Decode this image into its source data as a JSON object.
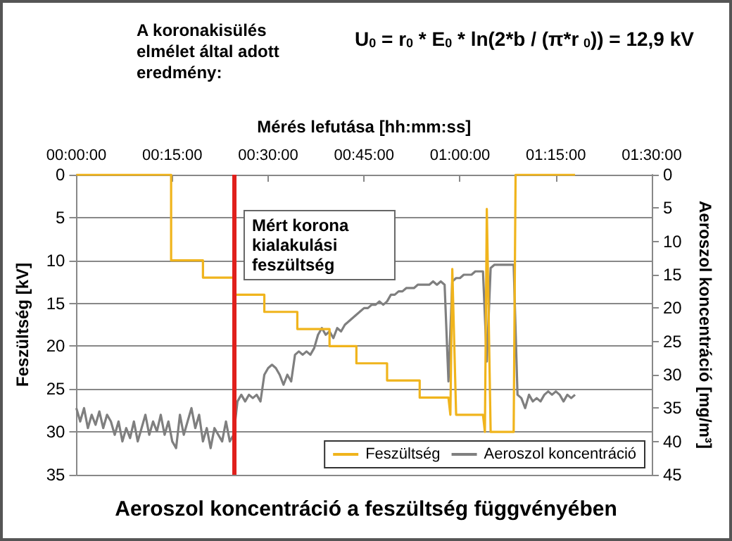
{
  "chart_data": {
    "type": "line",
    "title": "Aeroszol koncentráció a feszültség függvényében",
    "xlabel": "Mérés lefutása [hh:mm:ss]",
    "ylabel": "Feszültség [kV]",
    "y2label": "Aeroszol koncentráció [mg/m³]",
    "annotations": [
      "A koronakisülés elmélet által adott eredmény:",
      "U$_{0}$ = r$_{0}$ * E$_{0}$ * ln(2*b / (π*r$_{0}$)) = 12,9 kV"
    ],
    "xlim": [
      0,
      1.5
    ],
    "xticks": [
      {
        "value": 0,
        "label": "00:00:00"
      },
      {
        "value": 0.25,
        "label": "00:15:00"
      },
      {
        "value": 0.5,
        "label": "00:30:00"
      },
      {
        "value": 0.75,
        "label": "00:45:00"
      },
      {
        "value": 1,
        "label": "01:00:00"
      },
      {
        "value": 1.25,
        "label": "01:15:00"
      },
      {
        "value": 1.5,
        "label": "01:30:00"
      }
    ],
    "ylim": [
      35,
      0
    ],
    "yticks": [
      0,
      5,
      10,
      15,
      20,
      25,
      30,
      35
    ],
    "y2lim": [
      45,
      0
    ],
    "y2ticks": [
      0,
      5,
      10,
      15,
      20,
      25,
      30,
      35,
      40,
      45
    ],
    "grid": "y",
    "legend": "bottom right",
    "marker": "none",
    "line_style": "solid",
    "ref_lines": [
      {
        "axis": "x",
        "value": 0.414,
        "label": "Mért korona kialakulási feszültség",
        "color": "#e0201c"
      }
    ],
    "series": [
      {
        "name": "Feszültség",
        "color": "#f0b41c",
        "x": [
          0,
          0.247,
          0.247,
          0.33,
          0.33,
          0.414,
          0.414,
          0.49,
          0.49,
          0.576,
          0.576,
          0.66,
          0.66,
          0.73,
          0.73,
          0.81,
          0.81,
          0.895,
          0.895,
          0.97,
          0.975,
          0.98,
          0.99,
          1.06,
          1.065,
          1.07,
          1.08,
          1.14,
          1.145,
          1.3
        ],
        "values": [
          0,
          0,
          10,
          10,
          12,
          12,
          14,
          14,
          16,
          16,
          18,
          18,
          20,
          20,
          22,
          22,
          24,
          24,
          26,
          26,
          28,
          11,
          28,
          28,
          30,
          4,
          30,
          30,
          0,
          0
        ]
      },
      {
        "name": "Aeroszol koncentráció",
        "color": "#7f7f7f",
        "axis": "y2",
        "x": [
          0,
          0.01,
          0.02,
          0.03,
          0.04,
          0.05,
          0.06,
          0.07,
          0.08,
          0.09,
          0.1,
          0.11,
          0.12,
          0.13,
          0.14,
          0.15,
          0.16,
          0.17,
          0.18,
          0.19,
          0.2,
          0.21,
          0.22,
          0.23,
          0.24,
          0.25,
          0.26,
          0.27,
          0.28,
          0.29,
          0.3,
          0.31,
          0.32,
          0.33,
          0.34,
          0.35,
          0.36,
          0.37,
          0.38,
          0.39,
          0.4,
          0.41,
          0.42,
          0.43,
          0.44,
          0.45,
          0.46,
          0.47,
          0.48,
          0.49,
          0.5,
          0.51,
          0.52,
          0.53,
          0.54,
          0.55,
          0.56,
          0.57,
          0.58,
          0.59,
          0.6,
          0.61,
          0.62,
          0.63,
          0.64,
          0.65,
          0.66,
          0.67,
          0.68,
          0.69,
          0.7,
          0.71,
          0.72,
          0.73,
          0.74,
          0.75,
          0.76,
          0.77,
          0.78,
          0.79,
          0.8,
          0.81,
          0.82,
          0.83,
          0.84,
          0.85,
          0.86,
          0.87,
          0.88,
          0.89,
          0.9,
          0.91,
          0.92,
          0.93,
          0.94,
          0.95,
          0.96,
          0.97,
          0.98,
          0.99,
          1,
          1.01,
          1.02,
          1.03,
          1.04,
          1.05,
          1.06,
          1.07,
          1.08,
          1.09,
          1.1,
          1.12,
          1.14,
          1.15,
          1.16,
          1.17,
          1.18,
          1.19,
          1.2,
          1.21,
          1.22,
          1.23,
          1.24,
          1.25,
          1.26,
          1.27,
          1.28,
          1.29,
          1.3
        ],
        "values": [
          35,
          37,
          35,
          38,
          36,
          37.5,
          35.5,
          38,
          36,
          37,
          39,
          37,
          40,
          38,
          39.5,
          37,
          40,
          38,
          36,
          39,
          37,
          38.5,
          36,
          39,
          37,
          40,
          41,
          36,
          39,
          37,
          35,
          38,
          36,
          40,
          38,
          41,
          38,
          39,
          40,
          37,
          40,
          39,
          34,
          33,
          34,
          33,
          33.5,
          33,
          34,
          30,
          29,
          28.5,
          29,
          30,
          31.5,
          30,
          31,
          27,
          26.5,
          27,
          26.5,
          27,
          26,
          24,
          23,
          24,
          23.5,
          24.5,
          23,
          23.5,
          22.5,
          22,
          21.5,
          21,
          20.5,
          20,
          20,
          19.5,
          19.5,
          19,
          19.5,
          19,
          18,
          18,
          17.5,
          17.5,
          17,
          17,
          17,
          16.5,
          16.5,
          16.5,
          16.5,
          16,
          16.5,
          16,
          16.5,
          31,
          16,
          15.5,
          15.5,
          15,
          15,
          15,
          14.5,
          14.5,
          14.5,
          28,
          14,
          13.5,
          13.5,
          13.5,
          13.5,
          33,
          33.5,
          35,
          33,
          34,
          33.5,
          34,
          33,
          32.5,
          33,
          32.5,
          33,
          34,
          33,
          33.5,
          33
        ]
      }
    ]
  }
}
